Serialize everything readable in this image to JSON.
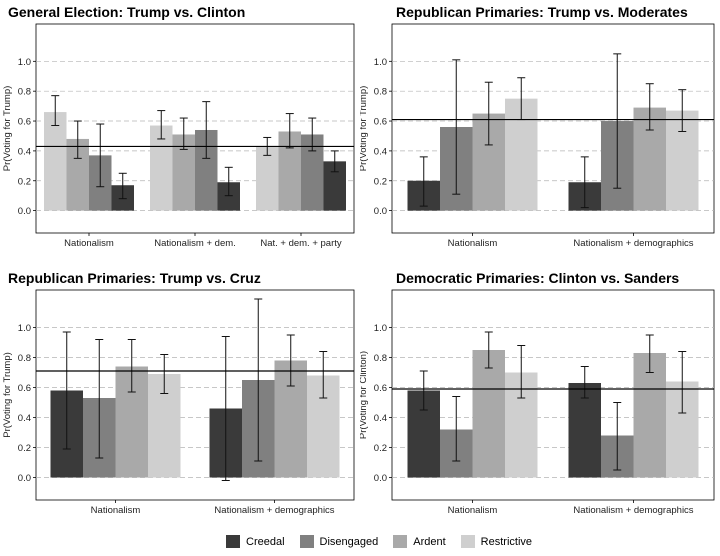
{
  "legend": {
    "items": [
      {
        "label": "Creedal",
        "color": "#3a3a3a"
      },
      {
        "label": "Disengaged",
        "color": "#808080"
      },
      {
        "label": "Ardent",
        "color": "#a9a9a9"
      },
      {
        "label": "Restrictive",
        "color": "#cfcfcf"
      }
    ]
  },
  "chart_data": [
    {
      "type": "bar",
      "title": "General Election: Trump vs. Clinton",
      "ylabel": "Pr(Voting for Trump)",
      "xlabel": "",
      "ylim": [
        -0.15,
        1.25
      ],
      "yticks": [
        "0.0",
        "0.2",
        "0.4",
        "0.6",
        "0.8",
        "1.0"
      ],
      "grid": true,
      "reference_line": 0.43,
      "categories": [
        "Nationalism",
        "Nationalism + dem.",
        "Nat. + dem. + party"
      ],
      "series": [
        {
          "name": "Creedal",
          "values": [
            0.17,
            0.19,
            0.33
          ],
          "lower": [
            0.08,
            0.1,
            0.26
          ],
          "upper": [
            0.25,
            0.29,
            0.4
          ]
        },
        {
          "name": "Disengaged",
          "values": [
            0.37,
            0.54,
            0.51
          ],
          "lower": [
            0.16,
            0.35,
            0.4
          ],
          "upper": [
            0.58,
            0.73,
            0.62
          ]
        },
        {
          "name": "Ardent",
          "values": [
            0.48,
            0.51,
            0.53
          ],
          "lower": [
            0.35,
            0.41,
            0.42
          ],
          "upper": [
            0.6,
            0.62,
            0.65
          ]
        },
        {
          "name": "Restrictive",
          "values": [
            0.66,
            0.57,
            0.43
          ],
          "lower": [
            0.57,
            0.48,
            0.37
          ],
          "upper": [
            0.77,
            0.67,
            0.49
          ]
        }
      ],
      "order": [
        "Restrictive",
        "Ardent",
        "Disengaged",
        "Creedal"
      ]
    },
    {
      "type": "bar",
      "title": "Republican Primaries: Trump vs. Moderates",
      "ylabel": "Pr(Voting for Trump)",
      "xlabel": "",
      "ylim": [
        -0.15,
        1.25
      ],
      "yticks": [
        "0.0",
        "0.2",
        "0.4",
        "0.6",
        "0.8",
        "1.0"
      ],
      "grid": true,
      "reference_line": 0.61,
      "categories": [
        "Nationalism",
        "Nationalism + demographics"
      ],
      "series": [
        {
          "name": "Creedal",
          "values": [
            0.2,
            0.19
          ],
          "lower": [
            0.03,
            0.02
          ],
          "upper": [
            0.36,
            0.36
          ]
        },
        {
          "name": "Disengaged",
          "values": [
            0.56,
            0.6
          ],
          "lower": [
            0.11,
            0.15
          ],
          "upper": [
            1.01,
            1.05
          ]
        },
        {
          "name": "Ardent",
          "values": [
            0.65,
            0.69
          ],
          "lower": [
            0.44,
            0.54
          ],
          "upper": [
            0.86,
            0.85
          ]
        },
        {
          "name": "Restrictive",
          "values": [
            0.75,
            0.67
          ],
          "lower": [
            0.61,
            0.53
          ],
          "upper": [
            0.89,
            0.81
          ]
        }
      ],
      "order": [
        "Creedal",
        "Disengaged",
        "Ardent",
        "Restrictive"
      ]
    },
    {
      "type": "bar",
      "title": "Republican Primaries: Trump vs. Cruz",
      "ylabel": "Pr(Voting for Trump)",
      "xlabel": "",
      "ylim": [
        -0.15,
        1.25
      ],
      "yticks": [
        "0.0",
        "0.2",
        "0.4",
        "0.6",
        "0.8",
        "1.0"
      ],
      "grid": true,
      "reference_line": 0.71,
      "categories": [
        "Nationalism",
        "Nationalism + demographics"
      ],
      "series": [
        {
          "name": "Creedal",
          "values": [
            0.58,
            0.46
          ],
          "lower": [
            0.19,
            -0.02
          ],
          "upper": [
            0.97,
            0.94
          ]
        },
        {
          "name": "Disengaged",
          "values": [
            0.53,
            0.65
          ],
          "lower": [
            0.13,
            0.11
          ],
          "upper": [
            0.92,
            1.19
          ]
        },
        {
          "name": "Ardent",
          "values": [
            0.74,
            0.78
          ],
          "lower": [
            0.57,
            0.61
          ],
          "upper": [
            0.92,
            0.95
          ]
        },
        {
          "name": "Restrictive",
          "values": [
            0.69,
            0.68
          ],
          "lower": [
            0.56,
            0.53
          ],
          "upper": [
            0.82,
            0.84
          ]
        }
      ],
      "order": [
        "Creedal",
        "Disengaged",
        "Ardent",
        "Restrictive"
      ]
    },
    {
      "type": "bar",
      "title": "Democratic Primaries: Clinton vs. Sanders",
      "ylabel": "Pr(Voting for Clinton)",
      "xlabel": "",
      "ylim": [
        -0.15,
        1.25
      ],
      "yticks": [
        "0.0",
        "0.2",
        "0.4",
        "0.6",
        "0.8",
        "1.0"
      ],
      "grid": true,
      "reference_line": 0.59,
      "categories": [
        "Nationalism",
        "Nationalism + demographics"
      ],
      "series": [
        {
          "name": "Creedal",
          "values": [
            0.58,
            0.63
          ],
          "lower": [
            0.45,
            0.53
          ],
          "upper": [
            0.71,
            0.74
          ]
        },
        {
          "name": "Disengaged",
          "values": [
            0.32,
            0.28
          ],
          "lower": [
            0.11,
            0.05
          ],
          "upper": [
            0.54,
            0.5
          ]
        },
        {
          "name": "Ardent",
          "values": [
            0.85,
            0.83
          ],
          "lower": [
            0.73,
            0.7
          ],
          "upper": [
            0.97,
            0.95
          ]
        },
        {
          "name": "Restrictive",
          "values": [
            0.7,
            0.64
          ],
          "lower": [
            0.53,
            0.43
          ],
          "upper": [
            0.88,
            0.84
          ]
        }
      ],
      "order": [
        "Creedal",
        "Disengaged",
        "Ardent",
        "Restrictive"
      ]
    }
  ]
}
